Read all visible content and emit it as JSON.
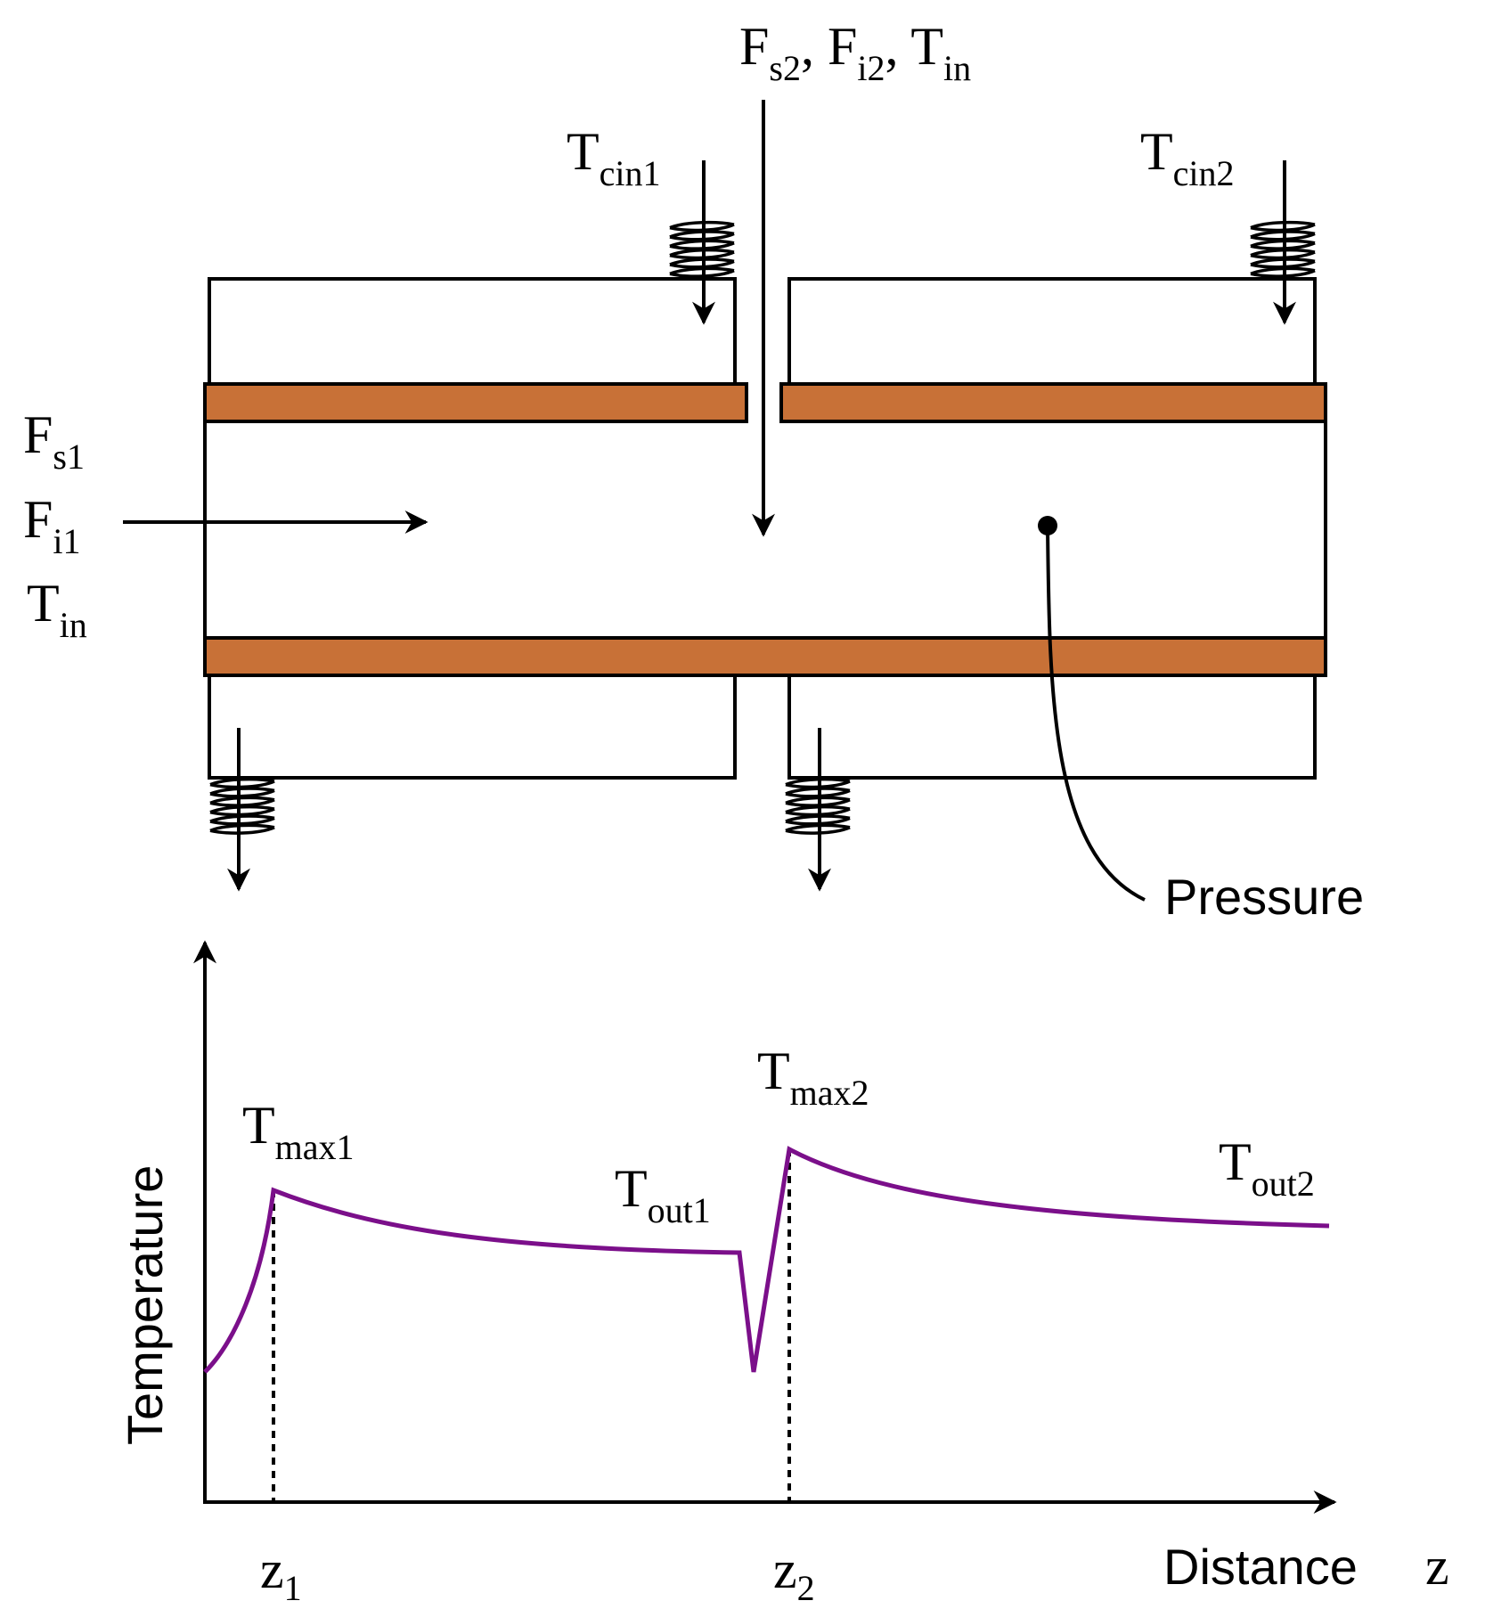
{
  "colors": {
    "wall": "#C87137",
    "curve": "#7B0F8A",
    "line": "#000000"
  },
  "labels": {
    "side_feed": {
      "text": "F",
      "sub": "s2",
      "sep1": ", F",
      "sub2": "i2",
      "sep2": ", T",
      "sub3": "in"
    },
    "tcin1": {
      "base": "T",
      "sub": "cin1"
    },
    "tcin2": {
      "base": "T",
      "sub": "cin2"
    },
    "fs1": {
      "base": "F",
      "sub": "s1"
    },
    "fi1": {
      "base": "F",
      "sub": "i1"
    },
    "tin": {
      "base": "T",
      "sub": "in"
    },
    "pressure": "Pressure",
    "tmax1": {
      "base": "T",
      "sub": "max1"
    },
    "tmax2": {
      "base": "T",
      "sub": "max2"
    },
    "tout1": {
      "base": "T",
      "sub": "out1"
    },
    "tout2": {
      "base": "T",
      "sub": "out2"
    },
    "y_axis": "Temperature",
    "x_axis": "Distance",
    "x_var": "z",
    "z1": {
      "base": "z",
      "sub": "1"
    },
    "z2": {
      "base": "z",
      "sub": "2"
    }
  },
  "icons": {
    "coolant_inlet_1": "coil-icon",
    "coolant_inlet_2": "coil-icon",
    "coolant_outlet_1": "coil-icon",
    "coolant_outlet_2": "coil-icon"
  }
}
